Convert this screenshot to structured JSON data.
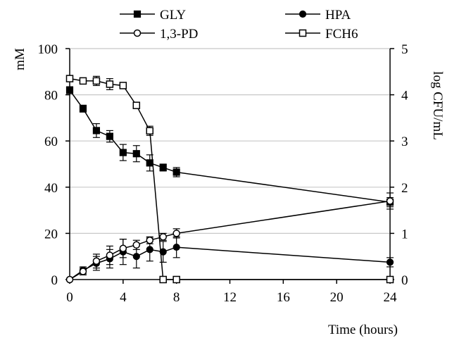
{
  "chart_data": {
    "type": "line",
    "xlabel": "Time (hours)",
    "ylabel": "mM",
    "y2label": "log CFU/mL",
    "xlim": [
      0,
      24
    ],
    "ylim": [
      0,
      100
    ],
    "y2lim": [
      0,
      5
    ],
    "xticks": [
      0,
      4,
      8,
      12,
      16,
      20,
      24
    ],
    "yticks": [
      0,
      20,
      40,
      60,
      80,
      100
    ],
    "y2ticks": [
      0,
      1,
      2,
      3,
      4,
      5
    ],
    "grid": "horizontal",
    "legend_position": "top",
    "series": [
      {
        "name": "GLY",
        "axis": "left",
        "marker": "filled-square",
        "x": [
          0,
          1,
          2,
          3,
          4,
          5,
          6,
          7,
          8,
          24
        ],
        "y": [
          82,
          74,
          64.5,
          62,
          55,
          54.5,
          50.5,
          48.5,
          46.5,
          33.5
        ],
        "err": [
          1.5,
          1.5,
          3,
          2.5,
          3.5,
          3.5,
          3.5,
          1.5,
          2,
          2
        ]
      },
      {
        "name": "HPA",
        "axis": "left",
        "marker": "filled-circle",
        "x": [
          0,
          1,
          2,
          3,
          4,
          5,
          6,
          7,
          8,
          24
        ],
        "y": [
          0,
          4,
          7,
          9,
          12,
          10,
          13,
          12,
          14,
          7.5
        ],
        "err": [
          0,
          1.5,
          3,
          4,
          5.5,
          5,
          5,
          4.5,
          4.5,
          2
        ]
      },
      {
        "name": "1,3-PD",
        "axis": "left",
        "marker": "open-circle",
        "x": [
          0,
          1,
          2,
          3,
          4,
          5,
          6,
          7,
          8,
          24
        ],
        "y": [
          0,
          3.5,
          8,
          10.5,
          13.5,
          15,
          17,
          18.5,
          20,
          34
        ],
        "err": [
          0,
          1.5,
          3,
          4,
          4,
          2,
          1.5,
          1.5,
          2,
          3.5
        ]
      },
      {
        "name": "FCH6",
        "axis": "right",
        "marker": "open-square",
        "x": [
          0,
          1,
          2,
          3,
          4,
          5,
          6,
          7,
          8,
          24
        ],
        "y": [
          4.35,
          4.3,
          4.3,
          4.23,
          4.2,
          3.77,
          3.22,
          0,
          0,
          0
        ],
        "err": [
          0.05,
          0.05,
          0.1,
          0.12,
          0,
          0.05,
          0.1,
          0,
          0,
          0
        ]
      }
    ]
  }
}
